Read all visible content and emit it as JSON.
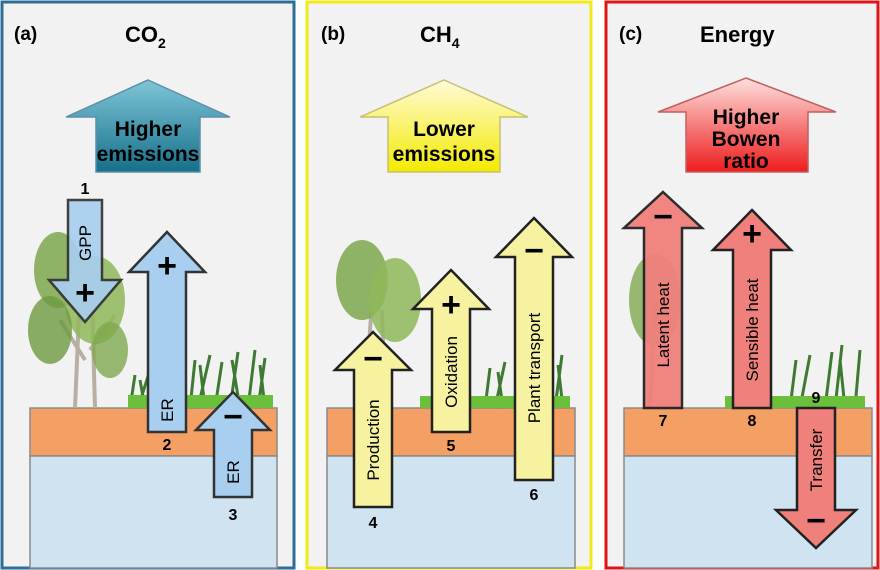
{
  "colors": {
    "panel_a_border": "#2e6e96",
    "panel_b_border": "#f2ea18",
    "panel_c_border": "#e01414",
    "panel_background": "#f2f2f2",
    "soil_orange": "#f4a065",
    "water_blue": "#cfe3f0",
    "co2_arrow_blue": "#a8cfef",
    "co2_big_arrow_top": "#7fc5d8",
    "co2_big_arrow_bottom": "#16708a",
    "ch4_arrow_yellow": "#f6f2a0",
    "ch4_big_arrow_top": "#fffbd8",
    "ch4_big_arrow_bottom": "#f3ea00",
    "energy_arrow_red": "#f0807c",
    "energy_big_arrow_top": "#fde0de",
    "energy_big_arrow_bottom": "#ee1c1c"
  },
  "panels": [
    {
      "letter": "(a)",
      "title_main": "CO",
      "title_sub": "2",
      "big_arrow_lines": [
        "Higher",
        "emissions"
      ],
      "process_arrows": [
        {
          "label": "GPP",
          "direction": "down",
          "number": "1",
          "sign": "+"
        },
        {
          "label": "ER",
          "direction": "up",
          "number": "2",
          "sign": "+"
        },
        {
          "label": "ER",
          "direction": "up",
          "number": "3",
          "sign": "−"
        }
      ]
    },
    {
      "letter": "(b)",
      "title_main": "CH",
      "title_sub": "4",
      "big_arrow_lines": [
        "Lower",
        "emissions"
      ],
      "process_arrows": [
        {
          "label": "Production",
          "direction": "up",
          "number": "4",
          "sign": "−"
        },
        {
          "label": "Oxidation",
          "direction": "up",
          "number": "5",
          "sign": "+"
        },
        {
          "label": "Plant transport",
          "direction": "up",
          "number": "6",
          "sign": "−"
        }
      ]
    },
    {
      "letter": "(c)",
      "title_main": "Energy",
      "title_sub": "",
      "big_arrow_lines": [
        "Higher",
        "Bowen",
        "ratio"
      ],
      "process_arrows": [
        {
          "label": "Latent heat",
          "direction": "up",
          "number": "7",
          "sign": "−"
        },
        {
          "label": "Sensible heat",
          "direction": "up",
          "number": "8",
          "sign": "+"
        },
        {
          "label": "Transfer",
          "direction": "down",
          "number": "9",
          "sign": "−"
        }
      ]
    }
  ]
}
